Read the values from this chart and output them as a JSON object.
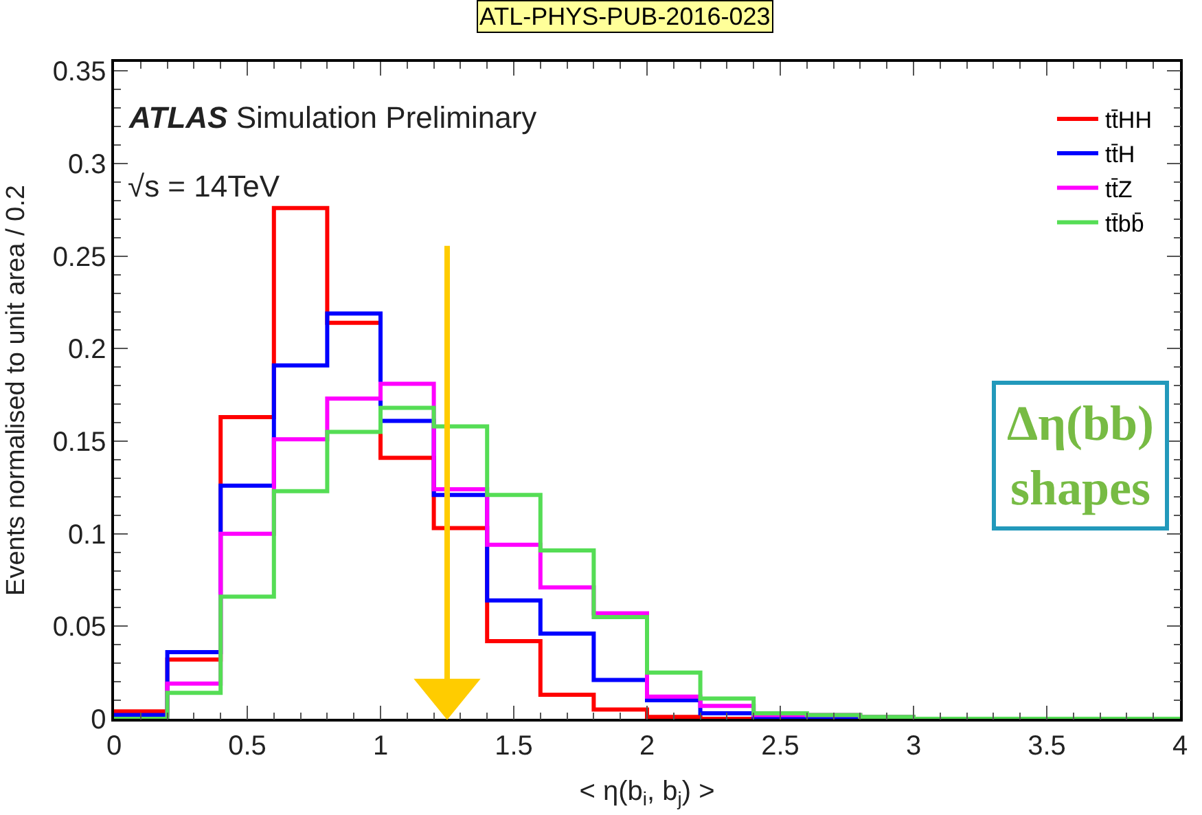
{
  "chart_data": {
    "type": "histogram",
    "xlabel": "< η(b$_{i}$, b$_{j}$) >",
    "ylabel": "Events normalised to unit area / 0.2",
    "annotations": [
      "ATL-PHYS-PUB-2016-023",
      "ATLAS Simulation Preliminary",
      "√s = 14TeV",
      "Δη(bb)\nshapes"
    ],
    "bins": [
      0,
      0.2,
      0.4,
      0.6,
      0.8,
      1.0,
      1.2,
      1.4,
      1.6,
      1.8,
      2.0,
      2.2,
      2.4,
      2.6,
      2.8,
      3.0,
      3.2,
      3.4,
      3.6,
      3.8,
      4.0
    ],
    "series": [
      {
        "name": "tt̄HH",
        "color": "#ff0000",
        "values": [
          0.004,
          0.032,
          0.163,
          0.276,
          0.214,
          0.141,
          0.103,
          0.042,
          0.013,
          0.005,
          0.001,
          0,
          0,
          0,
          0,
          0,
          0,
          0,
          0,
          0
        ]
      },
      {
        "name": "tt̄H",
        "color": "#0000ff",
        "values": [
          0.002,
          0.036,
          0.126,
          0.191,
          0.219,
          0.161,
          0.121,
          0.064,
          0.046,
          0.021,
          0.01,
          0.003,
          0.001,
          0,
          0,
          0,
          0,
          0,
          0,
          0
        ]
      },
      {
        "name": "tt̄Z",
        "color": "#ff00ff",
        "values": [
          0,
          0.019,
          0.1,
          0.151,
          0.173,
          0.181,
          0.124,
          0.094,
          0.071,
          0.057,
          0.012,
          0.007,
          0.002,
          0.002,
          0.001,
          0,
          0,
          0,
          0,
          0
        ]
      },
      {
        "name": "tt̄bb̄",
        "color": "#55dd55",
        "values": [
          0,
          0.014,
          0.066,
          0.123,
          0.155,
          0.168,
          0.158,
          0.121,
          0.091,
          0.055,
          0.025,
          0.011,
          0.003,
          0.002,
          0.001,
          0,
          0,
          0,
          0,
          0
        ]
      }
    ],
    "xlim": [
      0,
      4
    ],
    "xticks": [
      0,
      0.5,
      1,
      1.5,
      2,
      2.5,
      3,
      3.5,
      4
    ],
    "ylim": [
      0,
      0.355
    ],
    "yticks": [
      0,
      0.05,
      0.1,
      0.15,
      0.2,
      0.25,
      0.3,
      0.35
    ],
    "ref_lines": [
      {
        "axis": "x",
        "value": 1.25,
        "color": "#ffcc00"
      }
    ],
    "legend": "top right",
    "grid": false,
    "line_style": "solid",
    "marker": "none"
  }
}
